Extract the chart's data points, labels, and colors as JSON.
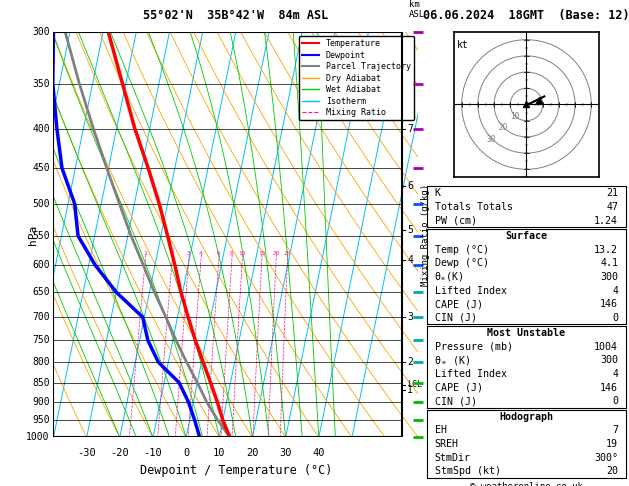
{
  "title_left": "55°02'N  35B°42'W  84m ASL",
  "title_right": "06.06.2024  18GMT  (Base: 12)",
  "xlabel": "Dewpoint / Temperature (°C)",
  "ylabel_left": "hPa",
  "ylabel_right_km": "km\nASL",
  "ylabel_mixing": "Mixing Ratio (g/kg)",
  "pressure_major": [
    300,
    350,
    400,
    450,
    500,
    550,
    600,
    650,
    700,
    750,
    800,
    850,
    900,
    950,
    1000
  ],
  "temp_ticks": [
    -30,
    -20,
    -10,
    0,
    10,
    20,
    30,
    40
  ],
  "T_min": -40,
  "T_max": 40,
  "skew": 25,
  "isotherm_color": "#00BFFF",
  "dry_adiabat_color": "#FFA500",
  "wet_adiabat_color": "#00CC00",
  "mixing_ratio_color": "#FF1493",
  "temperature_profile": {
    "pressure": [
      1000,
      950,
      900,
      850,
      800,
      750,
      700,
      650,
      600,
      550,
      500,
      450,
      400,
      350,
      300
    ],
    "temperature": [
      13.2,
      10.0,
      7.2,
      4.0,
      0.5,
      -3.2,
      -6.8,
      -10.5,
      -14.0,
      -18.0,
      -22.5,
      -28.0,
      -34.5,
      -41.0,
      -48.5
    ]
  },
  "dewpoint_profile": {
    "pressure": [
      1000,
      950,
      900,
      850,
      800,
      750,
      700,
      650,
      600,
      550,
      500,
      450,
      400,
      350,
      300
    ],
    "dewpoint": [
      4.1,
      1.5,
      -1.5,
      -5.5,
      -13.0,
      -17.5,
      -20.5,
      -30.0,
      -38.0,
      -45.0,
      -48.0,
      -54.0,
      -58.0,
      -62.0,
      -65.0
    ]
  },
  "parcel_trajectory": {
    "pressure": [
      1000,
      950,
      900,
      850,
      800,
      750,
      700,
      650,
      600,
      550,
      500,
      450,
      400,
      350,
      300
    ],
    "temperature": [
      13.2,
      8.5,
      4.0,
      0.0,
      -4.5,
      -9.0,
      -13.5,
      -18.5,
      -23.5,
      -29.0,
      -34.5,
      -40.5,
      -47.0,
      -54.0,
      -61.5
    ]
  },
  "mixing_ratios": [
    1,
    2,
    3,
    4,
    6,
    8,
    10,
    15,
    20,
    25
  ],
  "km_ticks": {
    "7": 400,
    "6": 475,
    "5": 540,
    "4": 590,
    "3": 700,
    "2": 800,
    "1": 870
  },
  "lcl_pressure": 855,
  "stats": {
    "K": 21,
    "Totals_Totals": 47,
    "PW_cm": 1.24,
    "Surface_Temp": 13.2,
    "Surface_Dewp": 4.1,
    "Surface_ThetaE": 300,
    "Surface_LI": 4,
    "Surface_CAPE": 146,
    "Surface_CIN": 0,
    "MU_Pressure": 1004,
    "MU_ThetaE": 300,
    "MU_LI": 4,
    "MU_CAPE": 146,
    "MU_CIN": 0,
    "Hodo_EH": 7,
    "Hodo_SREH": 19,
    "Hodo_StmDir": "300°",
    "Hodo_StmSpd": 20
  },
  "wind_marker_pressures": [
    300,
    350,
    400,
    450,
    500,
    550,
    600,
    650,
    700,
    750,
    800,
    850,
    900,
    950,
    1000
  ],
  "wind_marker_colors": [
    "#AA00AA",
    "#AA00AA",
    "#AA00AA",
    "#AA00AA",
    "#0055FF",
    "#0055FF",
    "#0055FF",
    "#00AAAA",
    "#00AAAA",
    "#00AAAA",
    "#00AAAA",
    "#00BB00",
    "#00BB00",
    "#00BB00",
    "#00BB00"
  ]
}
